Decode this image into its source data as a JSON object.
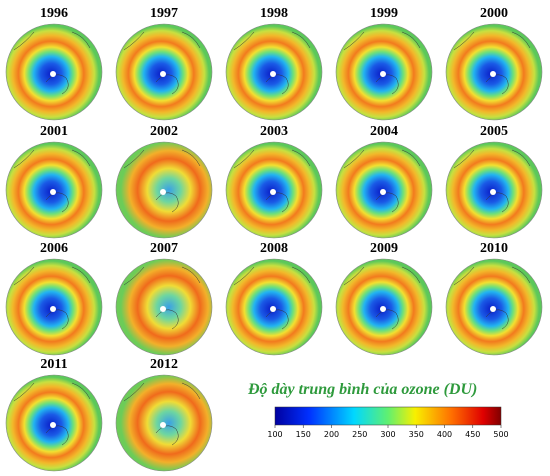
{
  "maps": [
    {
      "year": "1996"
    },
    {
      "year": "1997"
    },
    {
      "year": "1998"
    },
    {
      "year": "1999"
    },
    {
      "year": "2000"
    },
    {
      "year": "2001"
    },
    {
      "year": "2002"
    },
    {
      "year": "2003"
    },
    {
      "year": "2004"
    },
    {
      "year": "2005"
    },
    {
      "year": "2006"
    },
    {
      "year": "2007"
    },
    {
      "year": "2008"
    },
    {
      "year": "2009"
    },
    {
      "year": "2010"
    },
    {
      "year": "2011"
    },
    {
      "year": "2012"
    }
  ],
  "legend": {
    "title": "Độ dày trung bình của ozone (DU)",
    "range": [
      100,
      500
    ],
    "ticks": [
      100,
      150,
      200,
      250,
      300,
      350,
      400,
      450,
      500
    ]
  }
}
